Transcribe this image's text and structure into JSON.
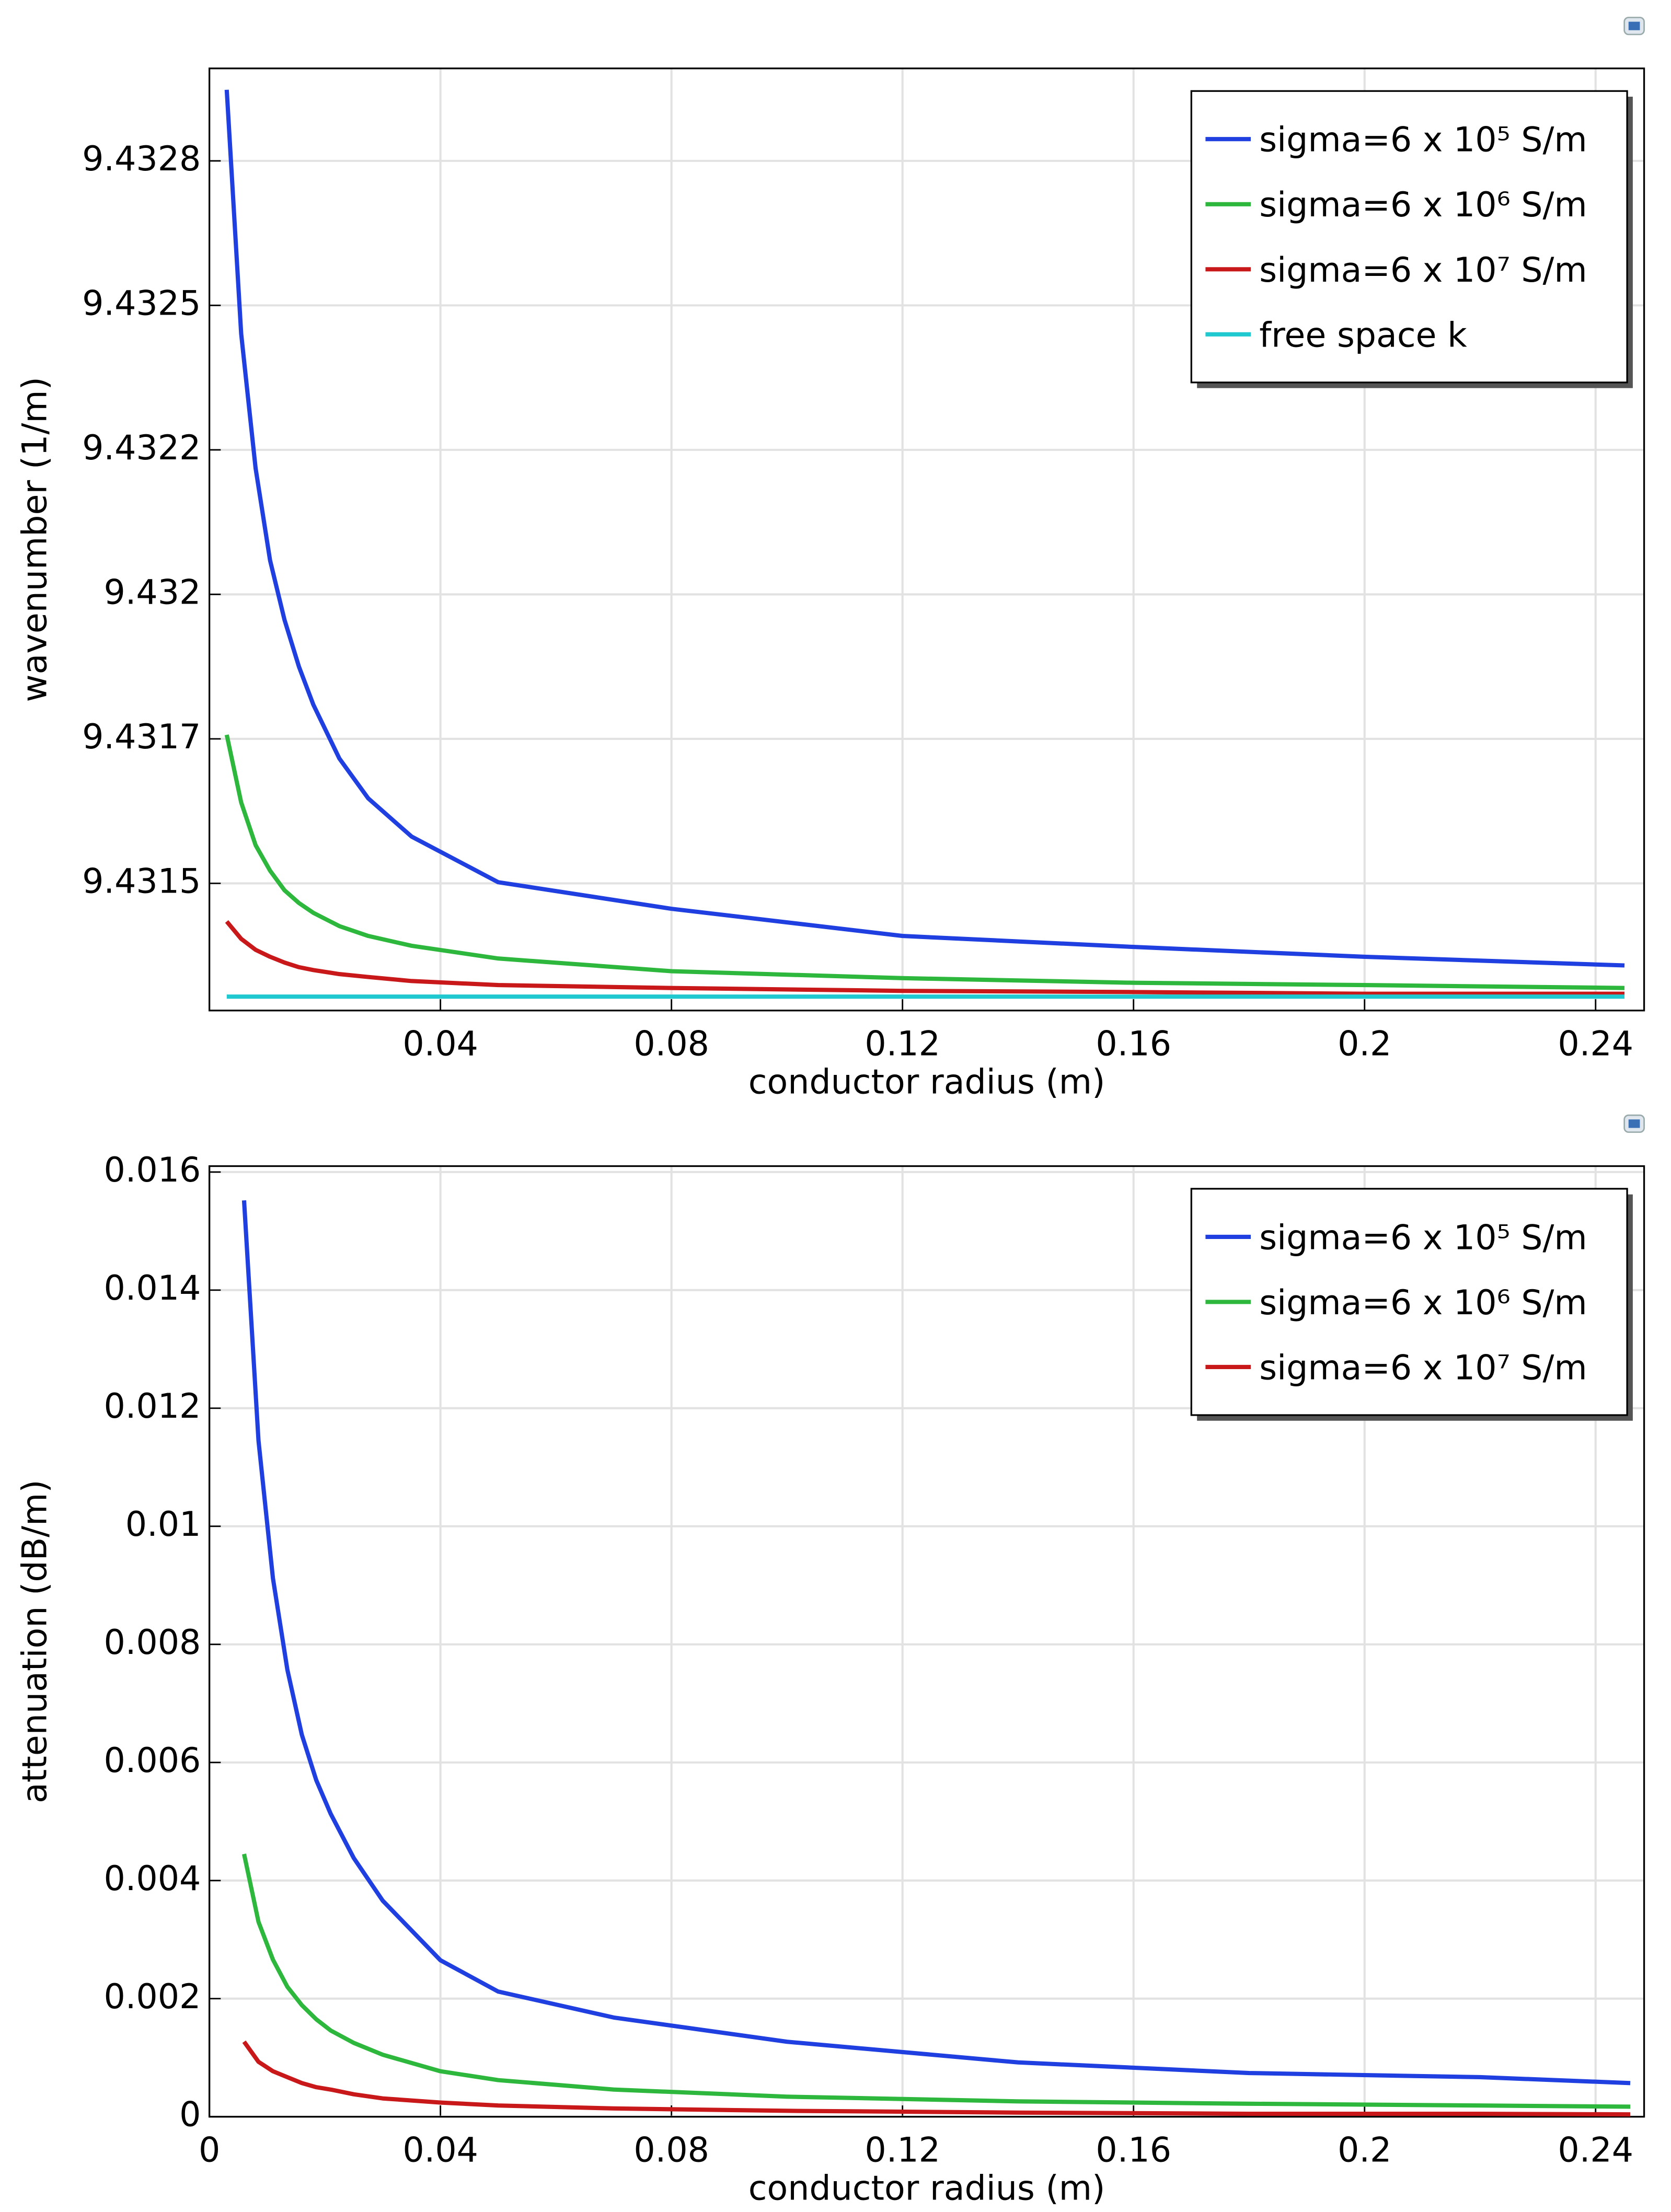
{
  "chart_data": [
    {
      "type": "line",
      "xlabel": "conductor radius (m)",
      "ylabel": "wavenumber (1/m)",
      "x": [
        0.003,
        0.0055,
        0.008,
        0.0105,
        0.013,
        0.0155,
        0.018,
        0.0225,
        0.0275,
        0.035,
        0.05,
        0.08,
        0.12,
        0.16,
        0.2,
        0.245
      ],
      "xlim": [
        0,
        0.2484
      ],
      "xticks": [
        0.04,
        0.08,
        0.12,
        0.16,
        0.2,
        0.24
      ],
      "ylim": [
        9.43128,
        9.43291
      ],
      "yticks": [
        9.4315,
        {
          "value": 9.43175,
          "label": "9.4317"
        },
        9.432,
        {
          "value": 9.43225,
          "label": "9.4322"
        },
        9.4325,
        {
          "value": 9.43275,
          "label": "9.4328"
        }
      ],
      "grid": true,
      "legend": "upper right",
      "series": [
        {
          "name": "sigma=6 x 10⁵ S/m",
          "color": "#1f3fe0",
          "values": [
            9.432873,
            9.432451,
            9.432218,
            9.432059,
            9.431956,
            9.431875,
            9.431809,
            9.431716,
            9.431647,
            9.431581,
            9.431502,
            9.431456,
            9.431409,
            9.43139,
            9.431373,
            9.431358
          ]
        },
        {
          "name": "sigma=6 x 10⁶ S/m",
          "color": "#2db83d",
          "values": [
            9.431757,
            9.43164,
            9.431566,
            9.431522,
            9.431488,
            9.431466,
            9.431449,
            9.431426,
            9.431409,
            9.431392,
            9.43137,
            9.431348,
            9.431336,
            9.431328,
            9.431324,
            9.431319
          ]
        },
        {
          "name": "sigma=6 x 10⁷ S/m",
          "color": "#c8181a",
          "values": [
            9.431434,
            9.431404,
            9.431385,
            9.431373,
            9.431363,
            9.431355,
            9.43135,
            9.431343,
            9.431338,
            9.431331,
            9.431324,
            9.431319,
            9.431314,
            9.431312,
            9.431309,
            9.431309
          ]
        },
        {
          "name": "free space k",
          "color": "#20c8d0",
          "values": [
            9.431304,
            9.431304,
            9.431304,
            9.431304,
            9.431304,
            9.431304,
            9.431304,
            9.431304,
            9.431304,
            9.431304,
            9.431304,
            9.431304,
            9.431304,
            9.431304,
            9.431304,
            9.431304
          ]
        }
      ]
    },
    {
      "type": "line",
      "xlabel": "conductor radius (m)",
      "ylabel": "attenuation (dB/m)",
      "x": [
        0.006,
        0.0085,
        0.011,
        0.0135,
        0.016,
        0.0185,
        0.021,
        0.025,
        0.03,
        0.04,
        0.05,
        0.07,
        0.1,
        0.14,
        0.18,
        0.22,
        0.246
      ],
      "xlim": [
        0,
        0.2484
      ],
      "xticks": [
        0,
        0.04,
        0.08,
        0.12,
        0.16,
        0.2,
        0.24
      ],
      "ylim": [
        0,
        0.0161
      ],
      "yticks": [
        0,
        0.002,
        0.004,
        0.006,
        0.008,
        0.01,
        0.012,
        0.014,
        0.016
      ],
      "grid": true,
      "legend": "upper right",
      "series": [
        {
          "name": "sigma=6 x 10⁵ S/m",
          "color": "#1f3fe0",
          "values": [
            0.01552,
            0.01145,
            0.00912,
            0.00757,
            0.00647,
            0.0057,
            0.00513,
            0.00438,
            0.00366,
            0.00265,
            0.00212,
            0.00168,
            0.00127,
            0.00092,
            0.00074,
            0.00067,
            0.00057
          ]
        },
        {
          "name": "sigma=6 x 10⁶ S/m",
          "color": "#2db83d",
          "values": [
            0.00445,
            0.0033,
            0.00266,
            0.0022,
            0.00189,
            0.00165,
            0.00146,
            0.00125,
            0.00105,
            0.00077,
            0.00062,
            0.00046,
            0.00034,
            0.00026,
            0.00022,
            0.00019,
            0.00017
          ]
        },
        {
          "name": "sigma=6 x 10⁷ S/m",
          "color": "#c8181a",
          "values": [
            0.00127,
            0.00093,
            0.00077,
            0.00067,
            0.00057,
            0.0005,
            0.00046,
            0.00038,
            0.00031,
            0.00024,
            0.00019,
            0.00014,
            0.0001,
            7e-05,
            5e-05,
            5e-05,
            4e-05
          ]
        }
      ]
    }
  ]
}
